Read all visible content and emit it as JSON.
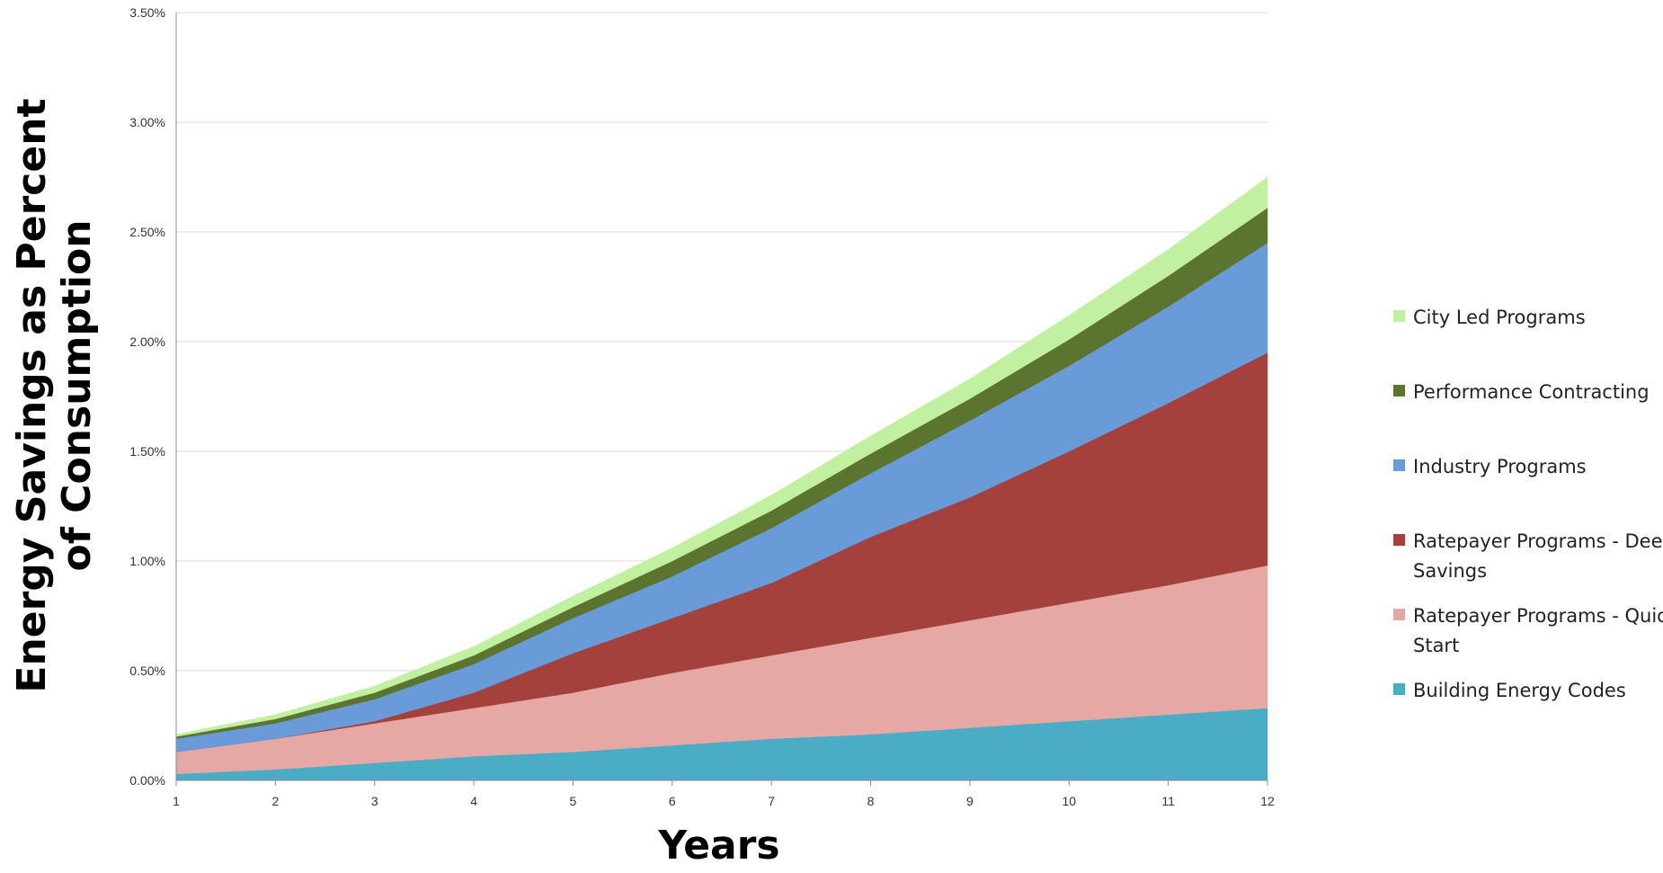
{
  "chart_data": {
    "type": "area",
    "stacked": true,
    "title": "",
    "xlabel": "Years",
    "ylabel_lines": [
      "Energy Savings as Percent",
      "of Consumption"
    ],
    "x": [
      1,
      2,
      3,
      4,
      5,
      6,
      7,
      8,
      9,
      10,
      11,
      12
    ],
    "x_tick_labels": [
      "1",
      "2",
      "3",
      "4",
      "5",
      "6",
      "7",
      "8",
      "9",
      "10",
      "11",
      "12"
    ],
    "ylim": [
      0,
      0.035
    ],
    "y_ticks": [
      0,
      0.005,
      0.01,
      0.015,
      0.02,
      0.025,
      0.03,
      0.035
    ],
    "y_tick_labels": [
      "0.00%",
      "0.50%",
      "1.00%",
      "1.50%",
      "2.00%",
      "2.50%",
      "3.00%",
      "3.50%"
    ],
    "grid": "horizontal",
    "legend_position": "right",
    "series": [
      {
        "name": "Building Energy Codes",
        "color": "#4bacc6",
        "values": [
          0.0003,
          0.0005,
          0.0008,
          0.0011,
          0.0013,
          0.0016,
          0.0019,
          0.0021,
          0.0024,
          0.0027,
          0.003,
          0.0033
        ]
      },
      {
        "name": "Ratepayer Programs - Quick Start",
        "color": "#e6a8a4",
        "values": [
          0.001,
          0.0014,
          0.0018,
          0.0022,
          0.0027,
          0.0033,
          0.0038,
          0.0044,
          0.0049,
          0.0054,
          0.0059,
          0.0065
        ]
      },
      {
        "name": "Ratepayer Programs - Deep Savings",
        "color": "#a5413c",
        "values": [
          0,
          0,
          0.0001,
          0.0007,
          0.0018,
          0.0025,
          0.0033,
          0.0046,
          0.0056,
          0.0069,
          0.0083,
          0.0097
        ]
      },
      {
        "name": "Industry Programs",
        "color": "#6a9bd9",
        "values": [
          0.0006,
          0.0007,
          0.001,
          0.0013,
          0.0016,
          0.0019,
          0.0025,
          0.0029,
          0.0035,
          0.0039,
          0.0044,
          0.005
        ]
      },
      {
        "name": "Performance Contracting",
        "color": "#5b7530",
        "values": [
          0.0001,
          0.0002,
          0.0003,
          0.0004,
          0.0005,
          0.0007,
          0.0008,
          0.0009,
          0.001,
          0.0012,
          0.0014,
          0.0016
        ]
      },
      {
        "name": "City Led Programs",
        "color": "#c2f0a1",
        "values": [
          0.0001,
          0.0002,
          0.0003,
          0.0004,
          0.0005,
          0.0006,
          0.0007,
          0.0008,
          0.0009,
          0.0011,
          0.0012,
          0.0014
        ]
      }
    ]
  }
}
